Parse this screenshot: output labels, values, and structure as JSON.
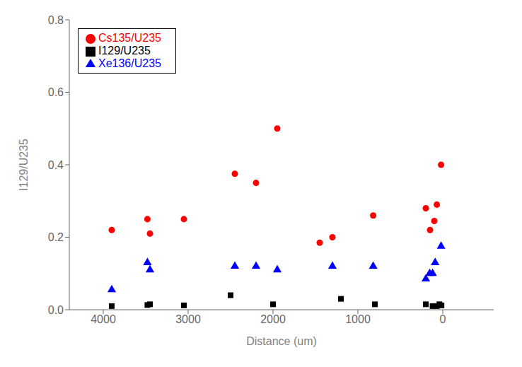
{
  "chart_data": {
    "type": "scatter",
    "xlabel": "Distance (um)",
    "ylabel": "I129/U235",
    "xlim": [
      4400,
      -600
    ],
    "ylim": [
      0.0,
      0.8
    ],
    "xticks": [
      4000,
      3000,
      2000,
      1000,
      0
    ],
    "yticks": [
      {
        "value": 0,
        "label": "0.0"
      },
      0.2,
      0.4,
      0.6,
      0.8
    ],
    "grid": false,
    "legend": "upper left",
    "series": [
      {
        "name": "I129/U235",
        "color": "#000000",
        "marker": "square",
        "x": [
          3900,
          3450,
          3050,
          3480,
          2000,
          2500,
          800,
          1200,
          200,
          120,
          70,
          40,
          15
        ],
        "values": [
          0.01,
          0.015,
          0.012,
          0.013,
          0.015,
          0.04,
          0.015,
          0.03,
          0.015,
          0.01,
          0.01,
          0.015,
          0.012
        ]
      },
      {
        "name": "Cs135/U235",
        "color": "#ff0000",
        "marker": "circle",
        "x": [
          3900,
          3450,
          3050,
          3480,
          1950,
          2200,
          2450,
          820,
          1300,
          1450,
          200,
          150,
          100,
          70,
          20
        ],
        "values": [
          0.22,
          0.21,
          0.25,
          0.25,
          0.5,
          0.35,
          0.375,
          0.26,
          0.2,
          0.185,
          0.28,
          0.22,
          0.245,
          0.29,
          0.4
        ]
      },
      {
        "name": "Xe136/U235",
        "color": "#0000ff",
        "marker": "triangle",
        "x": [
          3900,
          3450,
          3480,
          1950,
          2200,
          2450,
          820,
          1300,
          200,
          155,
          120,
          90,
          20
        ],
        "values": [
          0.055,
          0.11,
          0.13,
          0.11,
          0.12,
          0.12,
          0.12,
          0.12,
          0.085,
          0.1,
          0.1,
          0.13,
          0.175
        ]
      }
    ]
  }
}
